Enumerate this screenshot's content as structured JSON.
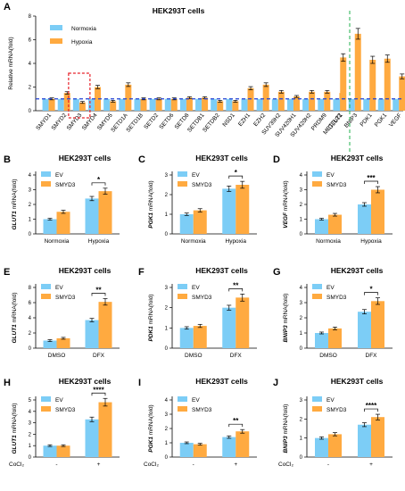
{
  "colors": {
    "blue": "#7ccdf6",
    "orange": "#ffaa40",
    "dashed_blue": "#1f3fd4",
    "dashed_green": "#22b14c",
    "dashed_red": "#e8232a"
  },
  "chart_data": [
    {
      "panel": "A",
      "type": "bar",
      "title": "HEK293T cells",
      "ylabel": "Relative mRNA(fold)",
      "ylim": [
        0,
        8
      ],
      "yticks": [
        "0",
        "2",
        "4",
        "6",
        "8"
      ],
      "legend": [
        "Normoxia",
        "Hypoxia"
      ],
      "categories": [
        "SMYD1",
        "SMYD2",
        "SMYD3",
        "SMYD4",
        "SMYD5",
        "SETD1A",
        "SETD1B",
        "SETD2",
        "SETD6",
        "SETD8",
        "SETDB1",
        "SETDB2",
        "NSD1",
        "EZH1",
        "EZH2",
        "SUV39H2",
        "SUV420H1",
        "SUV420H2",
        "PRDM9",
        "METTL22",
        "GLUT1",
        "BNIP3",
        "PDK1",
        "PGK1",
        "VEGF"
      ],
      "series": [
        {
          "name": "Normoxia",
          "values": [
            1,
            1,
            1,
            1,
            1,
            1,
            1,
            1,
            1,
            1,
            1,
            1,
            1,
            1,
            1,
            1,
            1,
            1,
            1,
            1,
            1,
            1,
            1,
            1,
            1
          ]
        },
        {
          "name": "Hypoxia",
          "values": [
            1.0,
            1.5,
            0.7,
            2.0,
            0.8,
            2.2,
            1.0,
            1.0,
            1.0,
            1.1,
            1.1,
            0.8,
            0.8,
            1.9,
            2.2,
            1.6,
            1.2,
            1.6,
            1.6,
            1.5,
            4.5,
            6.5,
            4.3,
            4.4,
            2.9
          ]
        }
      ],
      "annotations": {
        "baseline": 1
      }
    },
    {
      "panel": "B",
      "type": "bar",
      "title": "HEK293T cells",
      "ylabel_gene": "GLUT1",
      "ylabel_rest": " mRNA(fold)",
      "ylim": [
        0,
        4
      ],
      "yticks": [
        "0",
        "1",
        "2",
        "3",
        "4"
      ],
      "legend": [
        "EV",
        "SMYD3"
      ],
      "categories": [
        "Normoxia",
        "Hypoxia"
      ],
      "series": [
        {
          "name": "EV",
          "values": [
            1.0,
            2.4
          ]
        },
        {
          "name": "SMYD3",
          "values": [
            1.5,
            2.9
          ]
        }
      ],
      "significance": "*"
    },
    {
      "panel": "C",
      "type": "bar",
      "title": "HEK293T cells",
      "ylabel_gene": "PGK1",
      "ylabel_rest": " mRNA(fold)",
      "ylim": [
        0,
        3
      ],
      "yticks": [
        "0",
        "1",
        "2",
        "3"
      ],
      "legend": [
        "EV",
        "SMYD3"
      ],
      "categories": [
        "Normoxia",
        "Hypoxia"
      ],
      "series": [
        {
          "name": "EV",
          "values": [
            1.0,
            2.3
          ]
        },
        {
          "name": "SMYD3",
          "values": [
            1.2,
            2.5
          ]
        }
      ],
      "significance": "*"
    },
    {
      "panel": "D",
      "type": "bar",
      "title": "HEK293T cells",
      "ylabel_gene": "VEGF",
      "ylabel_rest": " mRNA(fold)",
      "ylim": [
        0,
        4
      ],
      "yticks": [
        "0",
        "1",
        "2",
        "3",
        "4"
      ],
      "legend": [
        "EV",
        "SMYD3"
      ],
      "categories": [
        "Normoxia",
        "Hypoxia"
      ],
      "series": [
        {
          "name": "EV",
          "values": [
            1.0,
            2.0
          ]
        },
        {
          "name": "SMYD3",
          "values": [
            1.3,
            3.0
          ]
        }
      ],
      "significance": "***"
    },
    {
      "panel": "E",
      "type": "bar",
      "title": "HEK293T cells",
      "ylabel_gene": "GLUT1",
      "ylabel_rest": " mRNA(fold)",
      "ylim": [
        0,
        8
      ],
      "yticks": [
        "0",
        "2",
        "4",
        "6",
        "8"
      ],
      "legend": [
        "EV",
        "SMYD3"
      ],
      "categories": [
        "DMSO",
        "DFX"
      ],
      "series": [
        {
          "name": "EV",
          "values": [
            1.0,
            3.7
          ]
        },
        {
          "name": "SMYD3",
          "values": [
            1.3,
            6.1
          ]
        }
      ],
      "significance": "**"
    },
    {
      "panel": "F",
      "type": "bar",
      "title": "HEK293T cells",
      "ylabel_gene": "PDK1",
      "ylabel_rest": " mRNA(fold)",
      "ylim": [
        0,
        3
      ],
      "yticks": [
        "0",
        "1",
        "2",
        "3"
      ],
      "legend": [
        "EV",
        "SMYD3"
      ],
      "categories": [
        "DMSO",
        "DFX"
      ],
      "series": [
        {
          "name": "EV",
          "values": [
            1.0,
            2.0
          ]
        },
        {
          "name": "SMYD3",
          "values": [
            1.1,
            2.5
          ]
        }
      ],
      "significance": "**"
    },
    {
      "panel": "G",
      "type": "bar",
      "title": "HEK293T cells",
      "ylabel_gene": "BNIP3",
      "ylabel_rest": " mRNA(fold)",
      "ylim": [
        0,
        4
      ],
      "yticks": [
        "0",
        "1",
        "2",
        "3",
        "4"
      ],
      "legend": [
        "EV",
        "SMYD3"
      ],
      "categories": [
        "DMSO",
        "DFX"
      ],
      "series": [
        {
          "name": "EV",
          "values": [
            1.0,
            2.4
          ]
        },
        {
          "name": "SMYD3",
          "values": [
            1.3,
            3.1
          ]
        }
      ],
      "significance": "*"
    },
    {
      "panel": "H",
      "type": "bar",
      "title": "HEK293T cells",
      "ylabel_gene": "GLUT1",
      "ylabel_rest": " mRNA(fold)",
      "ylim": [
        0,
        5
      ],
      "yticks": [
        "0",
        "1",
        "2",
        "3",
        "4",
        "5"
      ],
      "legend": [
        "EV",
        "SMYD3"
      ],
      "categories": [
        "-",
        "+"
      ],
      "x_prefix": "CoCl₂",
      "series": [
        {
          "name": "EV",
          "values": [
            1.0,
            3.3
          ]
        },
        {
          "name": "SMYD3",
          "values": [
            1.0,
            4.8
          ]
        }
      ],
      "significance": "****"
    },
    {
      "panel": "I",
      "type": "bar",
      "title": "HEK293T cells",
      "ylabel_gene": "PGK1",
      "ylabel_rest": " mRNA(fold)",
      "ylim": [
        0,
        4
      ],
      "yticks": [
        "0",
        "1",
        "2",
        "3",
        "4"
      ],
      "legend": [
        "EV",
        "SMYD3"
      ],
      "categories": [
        "-",
        "+"
      ],
      "x_prefix": "CoCl₂",
      "series": [
        {
          "name": "EV",
          "values": [
            1.0,
            1.4
          ]
        },
        {
          "name": "SMYD3",
          "values": [
            0.9,
            1.8
          ]
        }
      ],
      "significance": "**"
    },
    {
      "panel": "J",
      "type": "bar",
      "title": "HEK293T cells",
      "ylabel_gene": "BNIP3",
      "ylabel_rest": " mRNA(fold)",
      "ylim": [
        0,
        3
      ],
      "yticks": [
        "0",
        "1",
        "2",
        "3"
      ],
      "legend": [
        "EV",
        "SMYD3"
      ],
      "categories": [
        "-",
        "+"
      ],
      "x_prefix": "CoCl₂",
      "series": [
        {
          "name": "EV",
          "values": [
            1.0,
            1.7
          ]
        },
        {
          "name": "SMYD3",
          "values": [
            1.2,
            2.1
          ]
        }
      ],
      "significance": "****"
    }
  ]
}
